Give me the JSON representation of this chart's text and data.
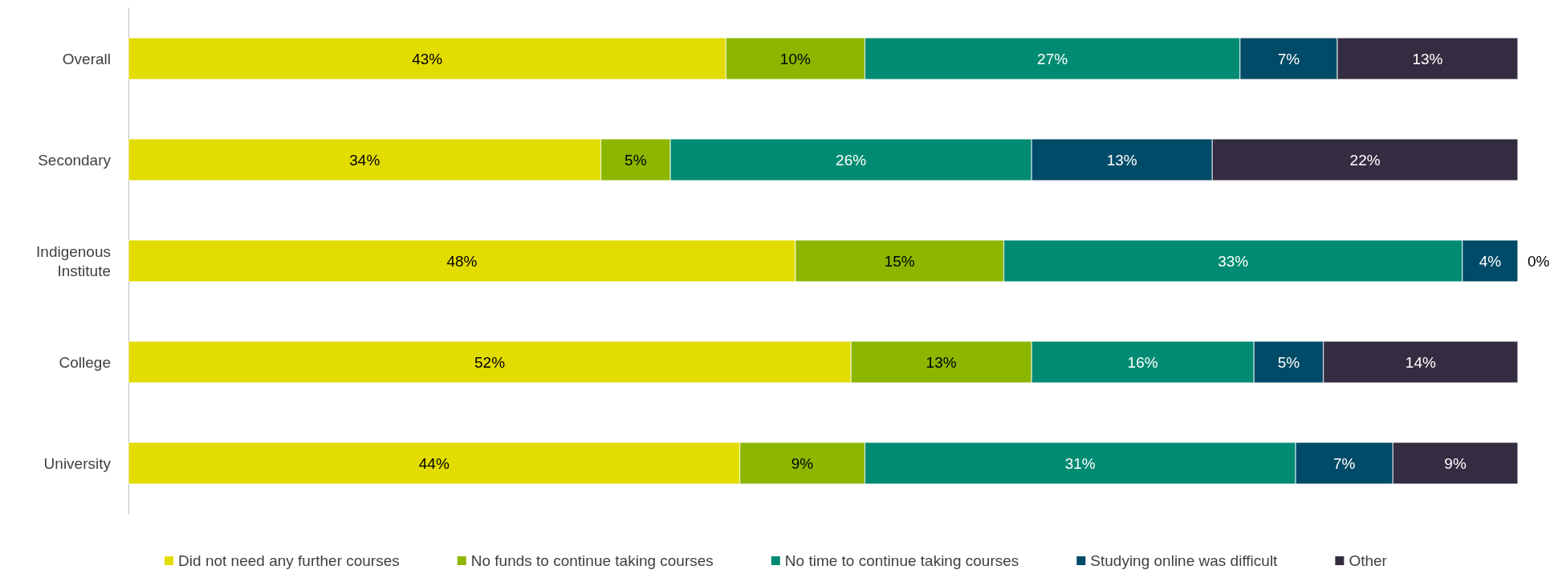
{
  "chart_data": {
    "type": "bar",
    "orientation": "horizontal",
    "stacked": true,
    "categories": [
      "Overall",
      "Secondary",
      "Indigenous\nInstitute",
      "College",
      "University"
    ],
    "xlim": [
      0,
      100
    ],
    "tick_labels": "y",
    "grid": false,
    "legend": "bottom",
    "series": [
      {
        "name": "Did not need any further courses",
        "color": "#e2dc00",
        "values": [
          43,
          34,
          48,
          52,
          44
        ],
        "value_labels": [
          "43%",
          "34%",
          "48%",
          "52%",
          "44%"
        ]
      },
      {
        "name": "No funds to continue taking courses",
        "color": "#8db600",
        "values": [
          10,
          5,
          15,
          13,
          9
        ],
        "value_labels": [
          "10%",
          "5%",
          "15%",
          "13%",
          "9%"
        ]
      },
      {
        "name": "No time to continue taking courses",
        "color": "#008b72",
        "values": [
          27,
          26,
          33,
          16,
          31
        ],
        "value_labels": [
          "27%",
          "26%",
          "33%",
          "16%",
          "31%"
        ]
      },
      {
        "name": "Studying online was difficult",
        "color": "#004b67",
        "values": [
          7,
          13,
          4,
          5,
          7
        ],
        "value_labels": [
          "7%",
          "13%",
          "4%",
          "5%",
          "7%"
        ]
      },
      {
        "name": "Other",
        "color": "#342c40",
        "values": [
          13,
          22,
          0,
          14,
          9
        ],
        "value_labels": [
          "13%",
          "22%",
          "0%",
          "14%",
          "9%"
        ]
      }
    ]
  }
}
